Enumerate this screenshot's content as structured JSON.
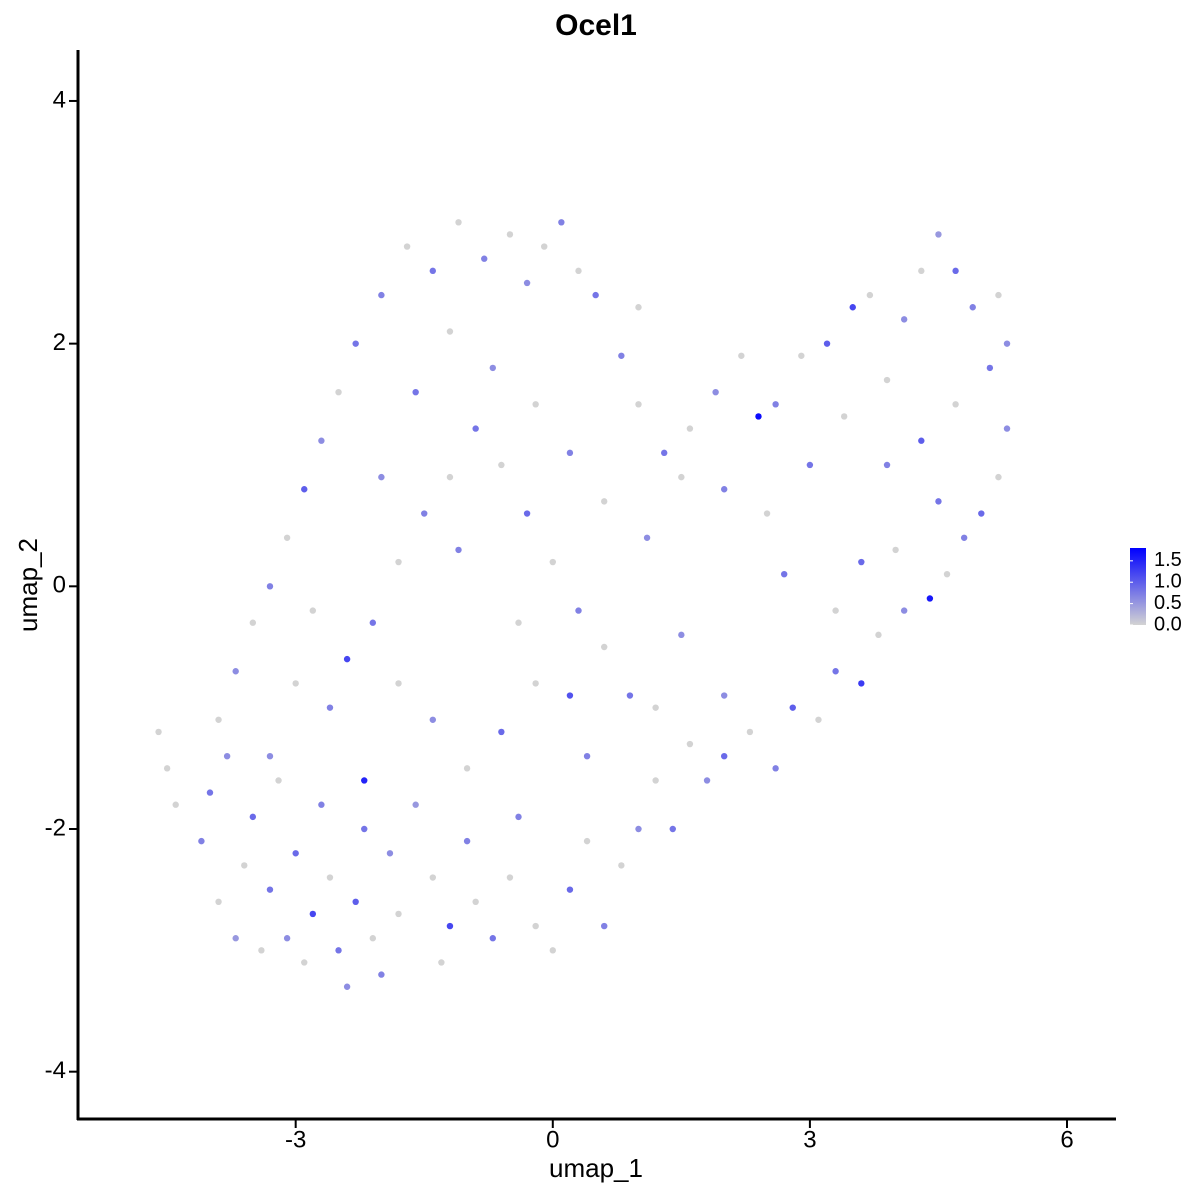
{
  "chart_data": {
    "type": "scatter",
    "title": "Ocel1",
    "x_label": "umap_1",
    "y_label": "umap_2",
    "xlim": [
      -5.54,
      6.56
    ],
    "ylim": [
      -4.39,
      4.42
    ],
    "xticks": [
      -3,
      0,
      3,
      6
    ],
    "yticks": [
      -4,
      -2,
      0,
      2,
      4
    ],
    "colorbar": {
      "lim": [
        0,
        1.8
      ],
      "low_color": "#d3d3d3",
      "high_color": "#0000ff",
      "ticks": [
        {
          "value": 0,
          "label": "0.0"
        },
        0.5,
        {
          "value": 1,
          "label": "1.0"
        },
        1.5
      ]
    },
    "x": [
      -4.6,
      -4.5,
      -4.4,
      -4.1,
      -4.0,
      -3.9,
      -3.8,
      -3.7,
      -3.6,
      -3.5,
      -3.4,
      -3.3,
      -3.2,
      -3.1,
      -3.0,
      -2.9,
      -2.8,
      -2.7,
      -2.6,
      -2.5,
      -2.4,
      -2.3,
      -2.2,
      -2.1,
      -2.0,
      -1.9,
      -1.8,
      -1.6,
      -1.4,
      -1.3,
      -1.2,
      -1.0,
      -0.9,
      -0.7,
      -0.5,
      -0.4,
      -0.2,
      0,
      0.2,
      0.4,
      0.6,
      0.8,
      1.0,
      1.2,
      1.4,
      1.6,
      1.8,
      2.0,
      2.3,
      2.6,
      2.8,
      3.1,
      3.3,
      3.6,
      3.8,
      4.1,
      4.4,
      4.6,
      4.8,
      5.0,
      5.2,
      5.3,
      5.1,
      5.3,
      5.2,
      4.9,
      4.7,
      4.5,
      4.3,
      4.1,
      3.9,
      3.7,
      3.5,
      3.2,
      2.9,
      2.6,
      2.4,
      2.2,
      1.9,
      1.6,
      1.3,
      1.0,
      0.8,
      0.5,
      0.3,
      0.1,
      -0.1,
      -0.3,
      -0.5,
      -0.8,
      -1.1,
      -1.4,
      -1.7,
      -2.0,
      -2.3,
      -2.5,
      -2.7,
      -2.9,
      -3.1,
      -3.3,
      -3.5,
      -3.7,
      -3.9,
      -2.4,
      -2.1,
      -1.8,
      -1.5,
      -1.2,
      -0.9,
      -0.6,
      -0.3,
      0,
      0.3,
      0.6,
      0.9,
      -0.2,
      -0.6,
      -1.0,
      -1.4,
      -1.8,
      -2.6,
      -2.8,
      -2.0,
      -1.6,
      -1.2,
      -0.7,
      -0.2,
      0.2,
      0.6,
      1.1,
      1.5,
      2.0,
      2.5,
      3.0,
      3.4,
      3.9,
      4.3,
      4.7,
      4.5,
      4.0,
      3.6,
      3.3,
      1.5,
      1.2,
      0.4,
      0.2,
      -0.4,
      -1.1,
      2.0,
      1.0,
      2.7,
      -3.3,
      -3.0,
      -2.2
    ],
    "series": [
      {
        "name": "umap_2",
        "values": [
          -1.2,
          -1.5,
          -1.8,
          -2.1,
          -1.7,
          -2.6,
          -1.4,
          -2.9,
          -2.3,
          -1.9,
          -3.0,
          -2.5,
          -1.6,
          -2.9,
          -2.2,
          -3.1,
          -2.7,
          -1.8,
          -2.4,
          -3.0,
          -3.3,
          -2.6,
          -1.6,
          -2.9,
          -3.2,
          -2.2,
          -2.7,
          -1.8,
          -2.4,
          -3.1,
          -2.8,
          -2.1,
          -2.6,
          -2.9,
          -2.4,
          -1.9,
          -2.8,
          -3.0,
          -2.5,
          -2.1,
          -2.8,
          -2.3,
          -2.0,
          -1.6,
          -2.0,
          -1.3,
          -1.6,
          -1.4,
          -1.2,
          -1.5,
          -1.0,
          -1.1,
          -0.7,
          -0.8,
          -0.4,
          -0.2,
          -0.1,
          0.1,
          0.4,
          0.6,
          0.9,
          1.3,
          1.8,
          2.0,
          2.4,
          2.3,
          2.6,
          2.9,
          2.6,
          2.2,
          1.7,
          2.4,
          2.3,
          2.0,
          1.9,
          1.5,
          1.4,
          1.9,
          1.6,
          1.3,
          1.1,
          1.5,
          1.9,
          2.4,
          2.6,
          3.0,
          2.8,
          2.5,
          2.9,
          2.7,
          3.0,
          2.6,
          2.8,
          2.4,
          2.0,
          1.6,
          1.2,
          0.8,
          0.4,
          0.0,
          -0.3,
          -0.7,
          -1.1,
          -0.6,
          -0.3,
          0.2,
          0.6,
          0.9,
          1.3,
          1.0,
          0.6,
          0.2,
          -0.2,
          -0.5,
          -0.9,
          -0.8,
          -1.2,
          -1.5,
          -1.1,
          -0.8,
          -1.0,
          -0.2,
          0.9,
          1.6,
          2.1,
          1.8,
          1.5,
          1.1,
          0.7,
          0.4,
          0.9,
          0.8,
          0.6,
          1.0,
          1.4,
          1.0,
          1.2,
          1.5,
          0.7,
          0.3,
          0.2,
          -0.2,
          -0.4,
          -1.0,
          -1.4,
          -0.9,
          -0.3,
          0.3,
          -0.9,
          2.3,
          0.1,
          -1.4,
          -0.8,
          -2.0
        ],
        "expression": [
          0,
          0,
          0,
          0.7,
          0.8,
          0,
          0.6,
          0.5,
          0,
          0.9,
          0,
          0.8,
          0,
          0.6,
          0.9,
          0,
          1.2,
          0.7,
          0,
          0.8,
          0.6,
          1.0,
          1.5,
          0,
          0.7,
          0.6,
          0,
          0.5,
          0,
          0,
          1.2,
          0.7,
          0,
          0.8,
          0,
          0.7,
          0,
          0,
          0.9,
          0,
          0.7,
          0,
          0.6,
          0,
          0.8,
          0,
          0.6,
          0.9,
          0,
          0.7,
          1.0,
          0,
          0.8,
          1.3,
          0,
          0.6,
          1.6,
          0,
          0.7,
          0.9,
          0,
          0.6,
          0.8,
          0.6,
          0,
          0.7,
          0.9,
          0.5,
          0,
          0.6,
          0,
          0,
          1.2,
          1.0,
          0,
          0.7,
          1.7,
          0,
          0.6,
          0,
          0.8,
          0,
          0.7,
          0.8,
          0,
          0.7,
          0,
          0.6,
          0,
          0.7,
          0,
          0.8,
          0,
          0.7,
          0.8,
          0,
          0.6,
          1.0,
          0,
          0.7,
          0,
          0.6,
          0,
          1.2,
          0.8,
          0,
          0.7,
          0,
          0.8,
          0,
          0.9,
          0,
          0.7,
          0,
          0.8,
          0,
          0.9,
          0,
          0.6,
          0,
          0.7,
          0,
          0.6,
          0.8,
          0,
          0.6,
          0,
          0.7,
          0,
          0.6,
          0,
          0.7,
          0,
          0.8,
          0,
          0.7,
          1.0,
          0,
          0.8,
          0,
          0.9,
          0,
          0.6,
          0,
          0.7,
          1.1,
          0,
          0.7,
          0.6,
          0,
          0.8,
          0.6,
          0,
          0.8
        ]
      }
    ]
  }
}
